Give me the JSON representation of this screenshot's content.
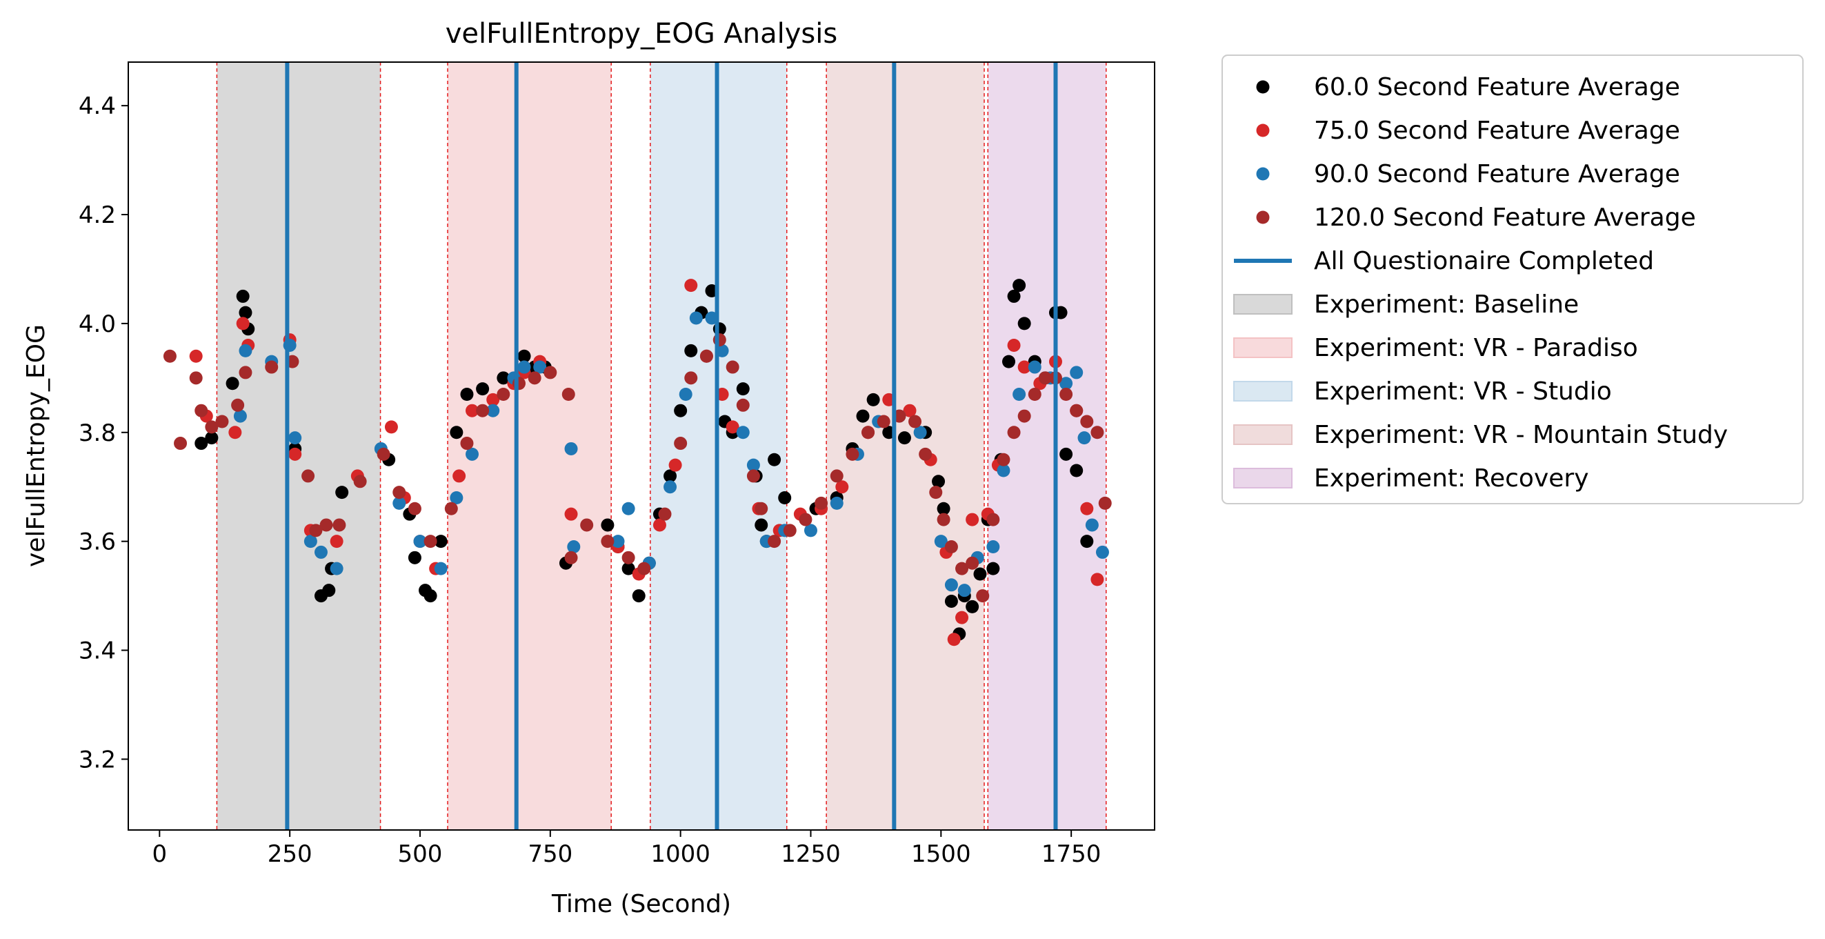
{
  "chart_data": {
    "type": "scatter",
    "title": "velFullEntropy_EOG Analysis",
    "xlabel": "Time (Second)",
    "ylabel": "velFullEntropy_EOG",
    "xlim": [
      -60,
      1910
    ],
    "ylim": [
      3.07,
      4.48
    ],
    "x_ticks": [
      0,
      250,
      500,
      750,
      1000,
      1250,
      1500,
      1750
    ],
    "y_ticks": [
      3.2,
      3.4,
      3.6,
      3.8,
      4.0,
      4.2,
      4.4
    ],
    "x_tick_labels": [
      "0",
      "250",
      "500",
      "750",
      "1000",
      "1250",
      "1500",
      "1750"
    ],
    "y_tick_labels": [
      "3.2",
      "3.4",
      "3.6",
      "3.8",
      "4.0",
      "4.2",
      "4.4"
    ],
    "grid": false,
    "legend_position": "outside-right",
    "legend": [
      {
        "label": "60.0 Second Feature Average",
        "kind": "marker",
        "color": "#000000"
      },
      {
        "label": "75.0 Second Feature Average",
        "kind": "marker",
        "color": "#d62728"
      },
      {
        "label": "90.0 Second Feature Average",
        "kind": "marker",
        "color": "#1f77b4"
      },
      {
        "label": "120.0 Second Feature Average",
        "kind": "marker",
        "color": "#a52a2a"
      },
      {
        "label": "All Questionaire Completed",
        "kind": "line",
        "color": "#1f77b4"
      },
      {
        "label": "Experiment: Baseline",
        "kind": "patch",
        "color": "#bfbfbf"
      },
      {
        "label": "Experiment: VR - Paradiso",
        "kind": "patch",
        "color": "#f4c2c4"
      },
      {
        "label": "Experiment: VR - Studio",
        "kind": "patch",
        "color": "#c2d8ea"
      },
      {
        "label": "Experiment: VR - Mountain Study",
        "kind": "patch",
        "color": "#e6c4c4"
      },
      {
        "label": "Experiment: Recovery",
        "kind": "patch",
        "color": "#dcbcdc"
      }
    ],
    "spans": [
      {
        "name": "Experiment: Baseline",
        "x0": 110,
        "x1": 424,
        "color": "#d9d9d9"
      },
      {
        "name": "Experiment: VR - Paradiso",
        "x0": 553,
        "x1": 867,
        "color": "#f8dcdd"
      },
      {
        "name": "Experiment: VR - Studio",
        "x0": 942,
        "x1": 1204,
        "color": "#dde9f3"
      },
      {
        "name": "Experiment: VR - Mountain Study",
        "x0": 1280,
        "x1": 1583,
        "color": "#f1dfdf"
      },
      {
        "name": "Experiment: Recovery",
        "x0": 1590,
        "x1": 1817,
        "color": "#ecdaed"
      }
    ],
    "questionnaire_lines": [
      245,
      685,
      1070,
      1410,
      1720
    ],
    "series": [
      {
        "name": "60.0 Second Feature Average",
        "color": "#000000",
        "points": [
          [
            80,
            3.78
          ],
          [
            100,
            3.79
          ],
          [
            140,
            3.89
          ],
          [
            160,
            4.05
          ],
          [
            165,
            4.02
          ],
          [
            170,
            3.99
          ],
          [
            260,
            3.77
          ],
          [
            310,
            3.5
          ],
          [
            325,
            3.51
          ],
          [
            330,
            3.55
          ],
          [
            350,
            3.69
          ],
          [
            440,
            3.75
          ],
          [
            480,
            3.65
          ],
          [
            490,
            3.57
          ],
          [
            510,
            3.51
          ],
          [
            520,
            3.5
          ],
          [
            540,
            3.6
          ],
          [
            570,
            3.8
          ],
          [
            590,
            3.87
          ],
          [
            620,
            3.88
          ],
          [
            660,
            3.9
          ],
          [
            700,
            3.94
          ],
          [
            720,
            3.92
          ],
          [
            740,
            3.92
          ],
          [
            780,
            3.56
          ],
          [
            860,
            3.63
          ],
          [
            880,
            3.59
          ],
          [
            900,
            3.55
          ],
          [
            920,
            3.5
          ],
          [
            940,
            3.56
          ],
          [
            960,
            3.65
          ],
          [
            980,
            3.72
          ],
          [
            1000,
            3.84
          ],
          [
            1020,
            3.95
          ],
          [
            1040,
            4.02
          ],
          [
            1060,
            4.06
          ],
          [
            1075,
            3.99
          ],
          [
            1085,
            3.82
          ],
          [
            1100,
            3.8
          ],
          [
            1120,
            3.88
          ],
          [
            1145,
            3.72
          ],
          [
            1155,
            3.63
          ],
          [
            1165,
            3.6
          ],
          [
            1180,
            3.75
          ],
          [
            1200,
            3.68
          ],
          [
            1260,
            3.66
          ],
          [
            1300,
            3.68
          ],
          [
            1330,
            3.77
          ],
          [
            1350,
            3.83
          ],
          [
            1370,
            3.86
          ],
          [
            1400,
            3.8
          ],
          [
            1430,
            3.79
          ],
          [
            1470,
            3.8
          ],
          [
            1495,
            3.71
          ],
          [
            1505,
            3.66
          ],
          [
            1520,
            3.49
          ],
          [
            1535,
            3.43
          ],
          [
            1545,
            3.5
          ],
          [
            1560,
            3.48
          ],
          [
            1575,
            3.54
          ],
          [
            1590,
            3.64
          ],
          [
            1600,
            3.55
          ],
          [
            1615,
            3.75
          ],
          [
            1630,
            3.93
          ],
          [
            1640,
            4.05
          ],
          [
            1650,
            4.07
          ],
          [
            1660,
            4.0
          ],
          [
            1680,
            3.93
          ],
          [
            1700,
            3.9
          ],
          [
            1720,
            4.02
          ],
          [
            1730,
            4.02
          ],
          [
            1740,
            3.76
          ],
          [
            1760,
            3.73
          ],
          [
            1780,
            3.6
          ]
        ]
      },
      {
        "name": "75.0 Second Feature Average",
        "color": "#d62728",
        "points": [
          [
            70,
            3.94
          ],
          [
            90,
            3.83
          ],
          [
            145,
            3.8
          ],
          [
            160,
            4.0
          ],
          [
            170,
            3.96
          ],
          [
            250,
            3.97
          ],
          [
            260,
            3.76
          ],
          [
            290,
            3.62
          ],
          [
            340,
            3.6
          ],
          [
            380,
            3.72
          ],
          [
            445,
            3.81
          ],
          [
            470,
            3.68
          ],
          [
            500,
            3.6
          ],
          [
            530,
            3.55
          ],
          [
            575,
            3.72
          ],
          [
            600,
            3.84
          ],
          [
            640,
            3.86
          ],
          [
            680,
            3.89
          ],
          [
            700,
            3.91
          ],
          [
            730,
            3.93
          ],
          [
            790,
            3.65
          ],
          [
            880,
            3.59
          ],
          [
            920,
            3.54
          ],
          [
            960,
            3.63
          ],
          [
            990,
            3.74
          ],
          [
            1020,
            4.07
          ],
          [
            1050,
            3.94
          ],
          [
            1080,
            3.87
          ],
          [
            1100,
            3.81
          ],
          [
            1150,
            3.66
          ],
          [
            1190,
            3.62
          ],
          [
            1230,
            3.65
          ],
          [
            1270,
            3.66
          ],
          [
            1310,
            3.7
          ],
          [
            1360,
            3.8
          ],
          [
            1400,
            3.86
          ],
          [
            1440,
            3.84
          ],
          [
            1480,
            3.75
          ],
          [
            1510,
            3.58
          ],
          [
            1525,
            3.42
          ],
          [
            1540,
            3.46
          ],
          [
            1560,
            3.64
          ],
          [
            1590,
            3.65
          ],
          [
            1610,
            3.74
          ],
          [
            1640,
            3.96
          ],
          [
            1660,
            3.92
          ],
          [
            1690,
            3.89
          ],
          [
            1720,
            3.93
          ],
          [
            1760,
            3.84
          ],
          [
            1780,
            3.66
          ],
          [
            1800,
            3.53
          ]
        ]
      },
      {
        "name": "90.0 Second Feature Average",
        "color": "#1f77b4",
        "points": [
          [
            155,
            3.83
          ],
          [
            165,
            3.95
          ],
          [
            215,
            3.93
          ],
          [
            250,
            3.96
          ],
          [
            260,
            3.79
          ],
          [
            290,
            3.6
          ],
          [
            310,
            3.58
          ],
          [
            340,
            3.55
          ],
          [
            425,
            3.77
          ],
          [
            460,
            3.67
          ],
          [
            500,
            3.6
          ],
          [
            540,
            3.55
          ],
          [
            570,
            3.68
          ],
          [
            600,
            3.76
          ],
          [
            640,
            3.84
          ],
          [
            680,
            3.9
          ],
          [
            700,
            3.92
          ],
          [
            730,
            3.92
          ],
          [
            790,
            3.77
          ],
          [
            795,
            3.59
          ],
          [
            880,
            3.6
          ],
          [
            900,
            3.66
          ],
          [
            940,
            3.56
          ],
          [
            980,
            3.7
          ],
          [
            1010,
            3.87
          ],
          [
            1030,
            4.01
          ],
          [
            1060,
            4.01
          ],
          [
            1080,
            3.95
          ],
          [
            1120,
            3.8
          ],
          [
            1140,
            3.74
          ],
          [
            1165,
            3.6
          ],
          [
            1200,
            3.62
          ],
          [
            1250,
            3.62
          ],
          [
            1300,
            3.67
          ],
          [
            1340,
            3.76
          ],
          [
            1380,
            3.82
          ],
          [
            1420,
            3.83
          ],
          [
            1460,
            3.8
          ],
          [
            1500,
            3.6
          ],
          [
            1520,
            3.52
          ],
          [
            1545,
            3.51
          ],
          [
            1570,
            3.57
          ],
          [
            1600,
            3.59
          ],
          [
            1620,
            3.73
          ],
          [
            1650,
            3.87
          ],
          [
            1680,
            3.92
          ],
          [
            1710,
            3.9
          ],
          [
            1740,
            3.89
          ],
          [
            1760,
            3.91
          ],
          [
            1775,
            3.79
          ],
          [
            1790,
            3.63
          ],
          [
            1810,
            3.58
          ]
        ]
      },
      {
        "name": "120.0 Second Feature Average",
        "color": "#a52a2a",
        "points": [
          [
            20,
            3.94
          ],
          [
            40,
            3.78
          ],
          [
            70,
            3.9
          ],
          [
            80,
            3.84
          ],
          [
            100,
            3.81
          ],
          [
            120,
            3.82
          ],
          [
            150,
            3.85
          ],
          [
            165,
            3.91
          ],
          [
            215,
            3.92
          ],
          [
            255,
            3.93
          ],
          [
            285,
            3.72
          ],
          [
            300,
            3.62
          ],
          [
            320,
            3.63
          ],
          [
            345,
            3.63
          ],
          [
            385,
            3.71
          ],
          [
            430,
            3.76
          ],
          [
            460,
            3.69
          ],
          [
            490,
            3.66
          ],
          [
            520,
            3.6
          ],
          [
            560,
            3.66
          ],
          [
            590,
            3.78
          ],
          [
            620,
            3.84
          ],
          [
            660,
            3.87
          ],
          [
            690,
            3.89
          ],
          [
            720,
            3.9
          ],
          [
            750,
            3.91
          ],
          [
            785,
            3.87
          ],
          [
            790,
            3.57
          ],
          [
            820,
            3.63
          ],
          [
            860,
            3.6
          ],
          [
            900,
            3.57
          ],
          [
            930,
            3.55
          ],
          [
            970,
            3.65
          ],
          [
            1000,
            3.78
          ],
          [
            1020,
            3.9
          ],
          [
            1050,
            3.94
          ],
          [
            1075,
            3.97
          ],
          [
            1100,
            3.92
          ],
          [
            1120,
            3.85
          ],
          [
            1140,
            3.72
          ],
          [
            1155,
            3.66
          ],
          [
            1180,
            3.6
          ],
          [
            1210,
            3.62
          ],
          [
            1240,
            3.64
          ],
          [
            1270,
            3.67
          ],
          [
            1300,
            3.72
          ],
          [
            1330,
            3.76
          ],
          [
            1360,
            3.8
          ],
          [
            1390,
            3.82
          ],
          [
            1420,
            3.83
          ],
          [
            1450,
            3.82
          ],
          [
            1470,
            3.76
          ],
          [
            1490,
            3.69
          ],
          [
            1505,
            3.64
          ],
          [
            1520,
            3.59
          ],
          [
            1540,
            3.55
          ],
          [
            1560,
            3.56
          ],
          [
            1580,
            3.5
          ],
          [
            1600,
            3.64
          ],
          [
            1620,
            3.75
          ],
          [
            1640,
            3.8
          ],
          [
            1660,
            3.83
          ],
          [
            1680,
            3.87
          ],
          [
            1700,
            3.9
          ],
          [
            1720,
            3.9
          ],
          [
            1740,
            3.87
          ],
          [
            1760,
            3.84
          ],
          [
            1780,
            3.82
          ],
          [
            1800,
            3.8
          ],
          [
            1815,
            3.67
          ]
        ]
      }
    ]
  }
}
